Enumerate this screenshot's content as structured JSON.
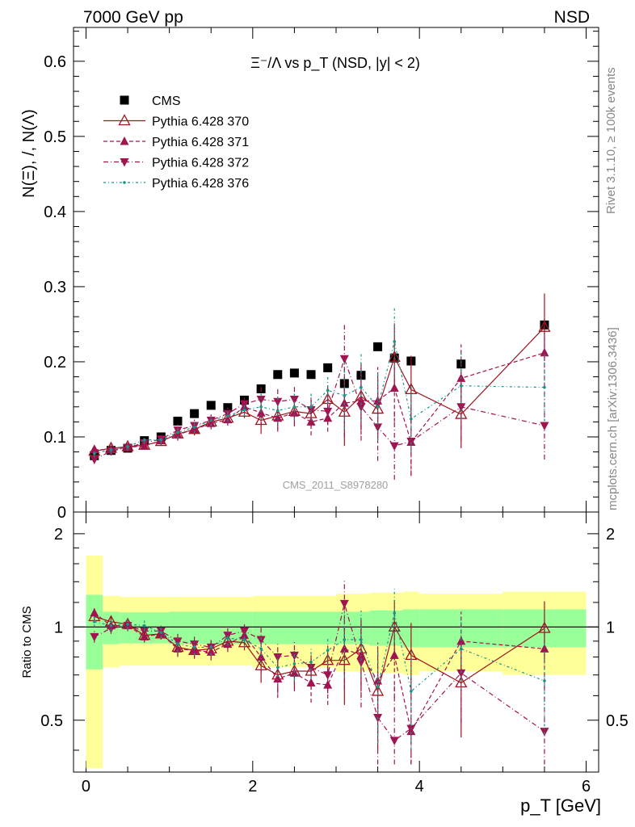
{
  "header": {
    "left": "7000 GeV pp",
    "right": "NSD",
    "side_top": "Rivet 3.1.10, ≥ 100k events",
    "side_bottom": "mcplots.cern.ch [arXiv:1306.3436]",
    "watermark": "CMS_2011_S8978280"
  },
  "colors": {
    "cms": "#000000",
    "pythia370": "#a0141e",
    "pythia371": "#a01450",
    "pythia372": "#a01450",
    "pythia376": "#15958c",
    "band_inner": "#99ff99",
    "band_outer": "#ffff99"
  },
  "chart_data": [
    {
      "type": "scatter",
      "title": "Ξ⁻/Λ  vs p_T (NSD, |y| < 2)",
      "ylabel": "N(Ξ), /, N(Λ)",
      "xlim": [
        -0.15,
        6.15
      ],
      "ylim": [
        0,
        0.645
      ],
      "y_ticks": [
        "0",
        "0.1",
        "0.2",
        "0.3",
        "0.4",
        "0.5",
        "0.6"
      ],
      "legend_position": "top-left",
      "x": [
        0.1,
        0.3,
        0.5,
        0.7,
        0.9,
        1.1,
        1.3,
        1.5,
        1.7,
        1.9,
        2.1,
        2.3,
        2.5,
        2.7,
        2.9,
        3.1,
        3.3,
        3.5,
        3.7,
        3.9,
        4.5,
        5.5
      ],
      "series": [
        {
          "name": "CMS",
          "marker": "square",
          "values": [
            0.075,
            0.082,
            0.085,
            0.095,
            0.1,
            0.121,
            0.131,
            0.142,
            0.139,
            0.149,
            0.164,
            0.183,
            0.185,
            0.183,
            0.192,
            0.171,
            0.182,
            0.22,
            0.205,
            0.201,
            0.197,
            0.249
          ]
        },
        {
          "name": "Pythia 6.428 370",
          "marker": "triangle-up-open",
          "line": "solid",
          "values": [
            0.081,
            0.085,
            0.087,
            0.089,
            0.094,
            0.104,
            0.11,
            0.12,
            0.125,
            0.133,
            0.122,
            0.128,
            0.134,
            0.131,
            0.15,
            0.133,
            0.154,
            0.137,
            0.206,
            0.163,
            0.13,
            0.246
          ]
        },
        {
          "name": "Pythia 6.428 371",
          "marker": "triangle-up",
          "line": "dashed",
          "values": [
            0.083,
            0.083,
            0.086,
            0.088,
            0.095,
            0.103,
            0.11,
            0.118,
            0.123,
            0.14,
            0.132,
            0.125,
            0.132,
            0.12,
            0.125,
            0.145,
            0.148,
            0.148,
            0.165,
            0.093,
            0.178,
            0.212
          ]
        },
        {
          "name": "Pythia 6.428 372",
          "marker": "triangle-down",
          "line": "dashdot",
          "values": [
            0.07,
            0.081,
            0.086,
            0.092,
            0.097,
            0.109,
            0.115,
            0.122,
            0.131,
            0.144,
            0.15,
            0.147,
            0.15,
            0.136,
            0.134,
            0.204,
            0.14,
            0.113,
            0.088,
            0.094,
            0.14,
            0.115
          ]
        },
        {
          "name": "Pythia 6.428 376",
          "marker": "dot",
          "line": "dotdash",
          "values": [
            0.078,
            0.083,
            0.087,
            0.096,
            0.096,
            0.106,
            0.113,
            0.122,
            0.128,
            0.136,
            0.14,
            0.135,
            0.14,
            0.14,
            0.162,
            0.155,
            0.166,
            0.14,
            0.227,
            0.124,
            0.168,
            0.166
          ]
        }
      ]
    },
    {
      "type": "scatter",
      "ylabel": "Ratio to CMS",
      "xlabel": "p_T [GeV]",
      "xlim": [
        -0.15,
        6.15
      ],
      "ylim": [
        0.34,
        2.35
      ],
      "y_ticks": [
        "0.5",
        "1",
        "2"
      ],
      "x_ticks": [
        "0",
        "2",
        "4",
        "6"
      ],
      "reference_line": 1,
      "uncertainty_bands": {
        "x_edges": [
          0.0,
          0.2,
          0.4,
          1.0,
          2.0,
          3.0,
          3.4,
          3.8,
          4.0,
          5.0,
          6.0
        ],
        "inner": [
          0.27,
          0.12,
          0.115,
          0.12,
          0.12,
          0.12,
          0.13,
          0.14,
          0.14,
          0.14,
          0.14
        ],
        "outer": [
          0.7,
          0.26,
          0.25,
          0.25,
          0.26,
          0.28,
          0.29,
          0.3,
          0.28,
          0.3,
          0.31
        ]
      },
      "series": [
        {
          "name": "Pythia 6.428 370",
          "values": [
            1.08,
            1.04,
            1.02,
            0.94,
            0.95,
            0.86,
            0.84,
            0.85,
            0.9,
            0.89,
            0.75,
            0.7,
            0.72,
            0.72,
            0.78,
            0.78,
            0.85,
            0.62,
            1.0,
            0.81,
            0.66,
            0.99
          ]
        },
        {
          "name": "Pythia 6.428 371",
          "values": [
            1.11,
            1.01,
            1.01,
            0.93,
            0.95,
            0.85,
            0.84,
            0.83,
            0.88,
            0.94,
            0.8,
            0.68,
            0.71,
            0.66,
            0.65,
            0.85,
            0.81,
            0.67,
            0.81,
            0.46,
            0.9,
            0.85
          ]
        },
        {
          "name": "Pythia 6.428 372",
          "values": [
            0.93,
            0.99,
            1.01,
            0.97,
            0.97,
            0.9,
            0.88,
            0.86,
            0.94,
            0.97,
            0.91,
            0.8,
            0.81,
            0.74,
            0.7,
            1.19,
            0.77,
            0.51,
            0.43,
            0.47,
            0.71,
            0.46
          ]
        },
        {
          "name": "Pythia 6.428 376",
          "values": [
            1.04,
            1.01,
            1.02,
            1.01,
            0.96,
            0.88,
            0.86,
            0.86,
            0.92,
            0.91,
            0.85,
            0.74,
            0.76,
            0.77,
            0.84,
            0.91,
            0.91,
            0.64,
            1.11,
            0.62,
            0.85,
            0.67
          ]
        }
      ]
    }
  ]
}
